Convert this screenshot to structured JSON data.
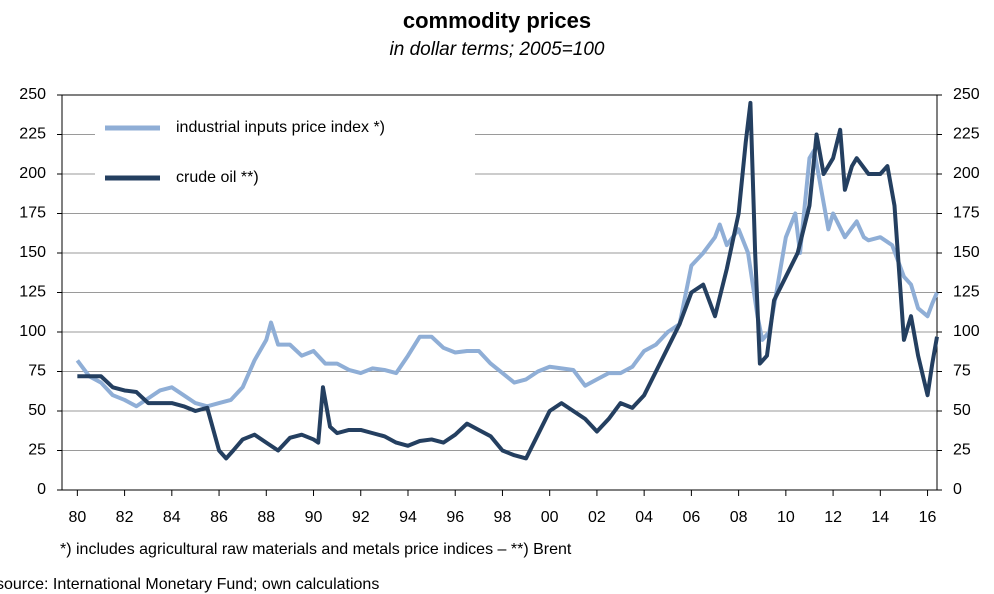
{
  "chart_data": {
    "type": "line",
    "title": "commodity prices",
    "subtitle": "in dollar terms; 2005=100",
    "footnote": "*) includes agricultural raw materials and metals price indices  –  **) Brent",
    "source": "source: International Monetary Fund; own calculations",
    "xlim": [
      1979.35,
      2016.4
    ],
    "xticks": [
      {
        "value": 1980,
        "label": "80"
      },
      {
        "value": 1982,
        "label": "82"
      },
      {
        "value": 1984,
        "label": "84"
      },
      {
        "value": 1986,
        "label": "86"
      },
      {
        "value": 1988,
        "label": "88"
      },
      {
        "value": 1990,
        "label": "90"
      },
      {
        "value": 1992,
        "label": "92"
      },
      {
        "value": 1994,
        "label": "94"
      },
      {
        "value": 1996,
        "label": "96"
      },
      {
        "value": 1998,
        "label": "98"
      },
      {
        "value": 2000,
        "label": "00"
      },
      {
        "value": 2002,
        "label": "02"
      },
      {
        "value": 2004,
        "label": "04"
      },
      {
        "value": 2006,
        "label": "06"
      },
      {
        "value": 2008,
        "label": "08"
      },
      {
        "value": 2010,
        "label": "10"
      },
      {
        "value": 2012,
        "label": "12"
      },
      {
        "value": 2014,
        "label": "14"
      },
      {
        "value": 2016,
        "label": "16"
      }
    ],
    "ylim": [
      0,
      250
    ],
    "yticks": [
      0,
      25,
      50,
      75,
      100,
      125,
      150,
      175,
      200,
      225,
      250
    ],
    "grid": true,
    "legend": "upper left",
    "series": [
      {
        "name": "industrial inputs price index *)",
        "color": "#8faed6",
        "x": [
          1980,
          1980.5,
          1981,
          1981.5,
          1982,
          1982.5,
          1983,
          1983.5,
          1984,
          1984.5,
          1985,
          1985.5,
          1986,
          1986.5,
          1987,
          1987.5,
          1988,
          1988.2,
          1988.5,
          1989,
          1989.5,
          1990,
          1990.5,
          1991,
          1991.5,
          1992,
          1992.5,
          1993,
          1993.5,
          1994,
          1994.5,
          1995,
          1995.5,
          1996,
          1996.5,
          1997,
          1997.5,
          1998,
          1998.5,
          1999,
          1999.5,
          2000,
          2000.5,
          2001,
          2001.5,
          2002,
          2002.5,
          2003,
          2003.5,
          2004,
          2004.5,
          2005,
          2005.5,
          2006,
          2006.5,
          2007,
          2007.2,
          2007.5,
          2008,
          2008.4,
          2008.8,
          2009,
          2009.3,
          2009.6,
          2010,
          2010.4,
          2010.6,
          2011,
          2011.2,
          2011.5,
          2011.8,
          2012,
          2012.5,
          2013,
          2013.3,
          2013.5,
          2014,
          2014.5,
          2015,
          2015.3,
          2015.6,
          2016,
          2016.2,
          2016.4
        ],
        "values": [
          82,
          72,
          68,
          60,
          57,
          53,
          58,
          63,
          65,
          60,
          55,
          53,
          55,
          57,
          65,
          82,
          95,
          106,
          92,
          92,
          85,
          88,
          80,
          80,
          76,
          74,
          77,
          76,
          74,
          85,
          97,
          97,
          90,
          87,
          88,
          88,
          80,
          74,
          68,
          70,
          75,
          78,
          77,
          76,
          66,
          70,
          74,
          74,
          78,
          88,
          92,
          100,
          105,
          142,
          150,
          160,
          168,
          155,
          165,
          150,
          110,
          95,
          100,
          125,
          160,
          175,
          150,
          210,
          215,
          190,
          165,
          175,
          160,
          170,
          160,
          158,
          160,
          155,
          135,
          130,
          115,
          110,
          118,
          125
        ]
      },
      {
        "name": "crude oil **)",
        "color": "#243f60",
        "x": [
          1980,
          1980.5,
          1981,
          1981.5,
          1982,
          1982.5,
          1983,
          1983.5,
          1984,
          1984.5,
          1985,
          1985.5,
          1986,
          1986.3,
          1986.6,
          1987,
          1987.5,
          1988,
          1988.5,
          1989,
          1989.5,
          1990,
          1990.2,
          1990.4,
          1990.7,
          1991,
          1991.5,
          1992,
          1992.5,
          1993,
          1993.5,
          1994,
          1994.5,
          1995,
          1995.5,
          1996,
          1996.5,
          1997,
          1997.5,
          1998,
          1998.5,
          1999,
          1999.5,
          2000,
          2000.5,
          2001,
          2001.5,
          2002,
          2002.5,
          2003,
          2003.5,
          2004,
          2004.5,
          2005,
          2005.5,
          2006,
          2006.5,
          2007,
          2007.5,
          2008,
          2008.3,
          2008.5,
          2008.7,
          2008.9,
          2009.2,
          2009.5,
          2010,
          2010.5,
          2011,
          2011.3,
          2011.6,
          2012,
          2012.3,
          2012.5,
          2012.8,
          2013,
          2013.5,
          2014,
          2014.3,
          2014.6,
          2015,
          2015.3,
          2015.6,
          2016,
          2016.2,
          2016.4
        ],
        "values": [
          72,
          72,
          72,
          65,
          63,
          62,
          55,
          55,
          55,
          53,
          50,
          52,
          25,
          20,
          25,
          32,
          35,
          30,
          25,
          33,
          35,
          32,
          30,
          65,
          40,
          36,
          38,
          38,
          36,
          34,
          30,
          28,
          31,
          32,
          30,
          35,
          42,
          38,
          34,
          25,
          22,
          20,
          35,
          50,
          55,
          50,
          45,
          37,
          45,
          55,
          52,
          60,
          75,
          90,
          105,
          125,
          130,
          110,
          140,
          175,
          220,
          245,
          150,
          80,
          85,
          120,
          135,
          150,
          180,
          225,
          200,
          210,
          228,
          190,
          205,
          210,
          200,
          200,
          205,
          180,
          95,
          110,
          85,
          60,
          80,
          97
        ]
      }
    ]
  }
}
